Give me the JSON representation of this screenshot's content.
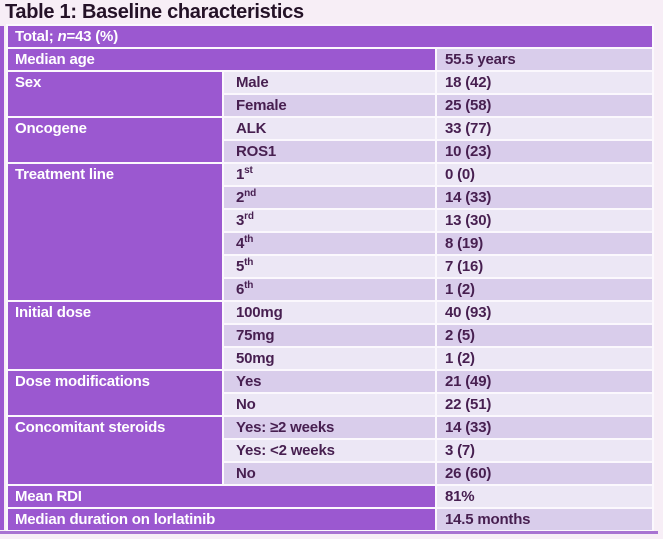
{
  "title": "Table 1: Baseline characteristics",
  "colors": {
    "purple": "#9b58d0",
    "band_light": "#ece7f5",
    "band_dark": "#d9cdeb",
    "value_text": "#471f50",
    "title_text": "#241227",
    "bottom_border": "#a873d2",
    "page_bg": "#f7eef6"
  },
  "table": {
    "header": {
      "pre": "Total; ",
      "n": "n",
      "post": "=43 (%)"
    },
    "columns": [
      "category",
      "subcategory",
      "value"
    ],
    "rows": [
      {
        "type": "full",
        "label": "Median age",
        "value": "55.5 years",
        "band": "dark"
      },
      {
        "type": "data",
        "category": "Sex",
        "cat_rowspan": 2,
        "sub": "Male",
        "value": "18 (42)",
        "band": "light"
      },
      {
        "type": "data",
        "sub": "Female",
        "value": "25 (58)",
        "band": "dark"
      },
      {
        "type": "data",
        "category": "Oncogene",
        "cat_rowspan": 2,
        "sub": "ALK",
        "value": "33 (77)",
        "band": "light"
      },
      {
        "type": "data",
        "sub": "ROS1",
        "value": "10 (23)",
        "band": "dark"
      },
      {
        "type": "data",
        "category": "Treatment line",
        "cat_rowspan": 6,
        "sub": "1",
        "sup": "st",
        "value": "0 (0)",
        "band": "light"
      },
      {
        "type": "data",
        "sub": "2",
        "sup": "nd",
        "value": "14 (33)",
        "band": "dark"
      },
      {
        "type": "data",
        "sub": "3",
        "sup": "rd",
        "value": "13 (30)",
        "band": "light"
      },
      {
        "type": "data",
        "sub": "4",
        "sup": "th",
        "value": "8 (19)",
        "band": "dark"
      },
      {
        "type": "data",
        "sub": "5",
        "sup": "th",
        "value": "7 (16)",
        "band": "light"
      },
      {
        "type": "data",
        "sub": "6",
        "sup": "th",
        "value": "1 (2)",
        "band": "dark"
      },
      {
        "type": "data",
        "category": "Initial dose",
        "cat_rowspan": 3,
        "sub": "100mg",
        "value": "40 (93)",
        "band": "light"
      },
      {
        "type": "data",
        "sub": "75mg",
        "value": "2 (5)",
        "band": "dark"
      },
      {
        "type": "data",
        "sub": "50mg",
        "value": "1 (2)",
        "band": "light"
      },
      {
        "type": "data",
        "category": "Dose modifications",
        "cat_rowspan": 2,
        "sub": "Yes",
        "value": "21 (49)",
        "band": "dark"
      },
      {
        "type": "data",
        "sub": "No",
        "value": "22 (51)",
        "band": "light"
      },
      {
        "type": "data",
        "category": "Concomitant steroids",
        "cat_rowspan": 3,
        "sub": "Yes: ≥2 weeks",
        "value": "14 (33)",
        "band": "dark"
      },
      {
        "type": "data",
        "sub": "Yes: <2 weeks",
        "value": "3 (7)",
        "band": "light"
      },
      {
        "type": "data",
        "sub": "No",
        "value": "26 (60)",
        "band": "dark"
      },
      {
        "type": "full",
        "label": "Mean RDI",
        "value": "81%",
        "band": "light"
      },
      {
        "type": "full",
        "label": "Median duration on lorlatinib",
        "value": "14.5 months",
        "band": "dark"
      }
    ]
  }
}
